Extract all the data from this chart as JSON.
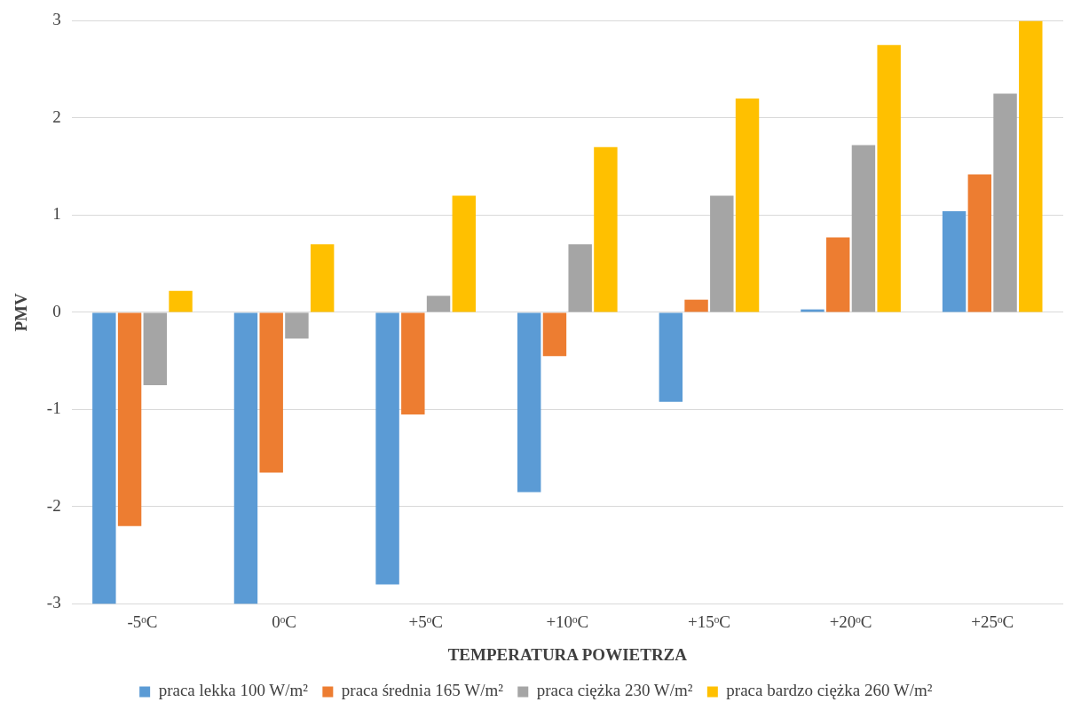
{
  "chart_data": {
    "type": "bar",
    "xlabel": "TEMPERATURA POWIETRZA",
    "ylabel": "PMV",
    "categories": [
      "-5ᵒC",
      "0ᵒC",
      "+5ᵒC",
      "+10ᵒC",
      "+15ᵒC",
      "+20ᵒC",
      "+25ᵒC"
    ],
    "series": [
      {
        "name": "praca lekka 100 W/m²",
        "color": "#5b9bd5",
        "values": [
          -3.0,
          -3.0,
          -2.8,
          -1.85,
          -0.92,
          0.03,
          1.04
        ]
      },
      {
        "name": "praca średnia 165 W/m²",
        "color": "#ed7d31",
        "values": [
          -2.2,
          -1.65,
          -1.05,
          -0.45,
          0.13,
          0.77,
          1.42
        ]
      },
      {
        "name": "praca ciężka 230 W/m²",
        "color": "#a5a5a5",
        "values": [
          -0.75,
          -0.27,
          0.17,
          0.7,
          1.2,
          1.72,
          2.25
        ]
      },
      {
        "name": "praca bardzo ciężka 260 W/m²",
        "color": "#ffc000",
        "values": [
          0.22,
          0.7,
          1.2,
          1.7,
          2.2,
          2.75,
          3.0
        ]
      }
    ],
    "ylim": [
      -3,
      3
    ],
    "yticks": [
      -3,
      -2,
      -1,
      0,
      1,
      2,
      3
    ],
    "grid": "y",
    "legend": "bottom"
  }
}
